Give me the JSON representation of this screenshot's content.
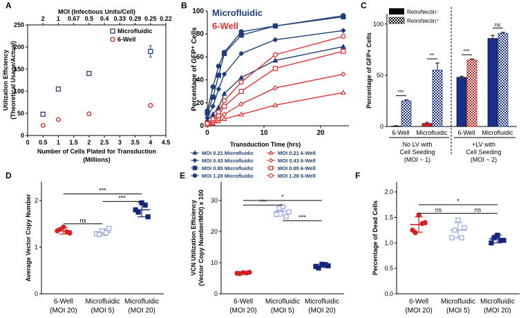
{
  "chart_data": [
    {
      "panel": "A",
      "type": "scatter",
      "xlabel": "Number of Cells Plated for Transduction (Millions)",
      "ylabel": "Utilization Efficiency (Theoretical Usage/Actual)",
      "top_axis_label": "MOI (Infectious Units/Cell)",
      "xticks": [
        "0",
        "0.5",
        "1",
        "1.5",
        "2",
        "2.5",
        "3",
        "3.5",
        "4",
        "4.5"
      ],
      "top_ticks": [
        "2",
        "1",
        "0.67",
        "0.5",
        "0.4",
        "0.33",
        "0.29",
        "0.25",
        "0.22"
      ],
      "yticks": [
        "0",
        "50",
        "100",
        "150",
        "200",
        "250"
      ],
      "xlim": [
        0,
        4.5
      ],
      "ylim": [
        0,
        250
      ],
      "series": [
        {
          "name": "Microfluidic",
          "marker": "square",
          "color": "#1f3f7a",
          "x": [
            0.5,
            1,
            2,
            4
          ],
          "y": [
            48,
            105,
            140,
            190
          ],
          "err": [
            3,
            4,
            4,
            13
          ]
        },
        {
          "name": "6-Well",
          "marker": "circle",
          "color": "#d42020",
          "x": [
            0.5,
            1,
            2,
            4
          ],
          "y": [
            23,
            36,
            49,
            68
          ],
          "err": [
            2,
            2,
            2,
            3
          ]
        }
      ]
    },
    {
      "panel": "B",
      "type": "line",
      "xlabel": "Transduction Time (hrs)",
      "ylabel": "Percentage of GFP⁺ Cells",
      "xticks": [
        "0",
        "10",
        "20"
      ],
      "yticks": [
        "0",
        "20",
        "40",
        "60",
        "80",
        "100"
      ],
      "xlim": [
        0,
        25
      ],
      "ylim": [
        0,
        100
      ],
      "titles": [
        "Microfluidic",
        "6-Well"
      ],
      "x": [
        0,
        1,
        2,
        3,
        6,
        12,
        24
      ],
      "series": [
        {
          "name": "MOI 0.21 Microfluidic",
          "marker": "tri",
          "color": "#1f3f7a",
          "y": [
            5,
            10,
            16,
            28,
            42,
            57,
            69
          ]
        },
        {
          "name": "MOI 0.43 Microfluidic",
          "marker": "dia",
          "color": "#1f3f7a",
          "y": [
            7,
            17,
            32,
            45,
            63,
            75,
            83
          ]
        },
        {
          "name": "MOI 0.85 Microfluidic",
          "marker": "sq",
          "color": "#1f3f7a",
          "y": [
            11,
            25,
            44,
            63,
            79,
            87,
            95
          ]
        },
        {
          "name": "MOI 1.28 Microfluidic",
          "marker": "circ",
          "color": "#1f3f7a",
          "y": [
            13,
            34,
            52,
            64,
            82,
            87,
            96
          ]
        },
        {
          "name": "MOI 0.21 6-Well",
          "marker": "tri",
          "color": "#e03030",
          "y": [
            1,
            2,
            4,
            6,
            10,
            18,
            29
          ]
        },
        {
          "name": "MOI 0.43 6-Well",
          "marker": "dia",
          "color": "#e03030",
          "y": [
            1,
            3,
            6,
            10,
            19,
            33,
            45
          ]
        },
        {
          "name": "MOI 0.85 6-Well",
          "marker": "sq",
          "color": "#e03030",
          "y": [
            2,
            5,
            9,
            17,
            30,
            50,
            65
          ]
        },
        {
          "name": "MOI 1.28 6-Well",
          "marker": "circ",
          "color": "#e03030",
          "y": [
            2,
            6,
            12,
            22,
            38,
            62,
            78
          ]
        }
      ]
    },
    {
      "panel": "C",
      "type": "bar",
      "ylabel": "Percentage of GFP+ Cells",
      "yticks": [
        "0",
        "50",
        "100"
      ],
      "ylim": [
        0,
        110
      ],
      "legend": [
        "RetroNectin⁻",
        "RetroNectin⁺"
      ],
      "groups": [
        "6-Well",
        "Microfluidic",
        "6-Well",
        "Microfluidic"
      ],
      "super_groups": [
        "No LV with",
        "Cell Seeding",
        "(MOI ~ 1)",
        "+LV with",
        "Cell Seeding",
        "(MOI ~ 2)"
      ],
      "series": [
        {
          "name": "RetroNectin⁻",
          "values": [
            0.5,
            3,
            48,
            86
          ],
          "err": [
            0.3,
            1,
            1,
            3
          ]
        },
        {
          "name": "RetroNectin⁺",
          "values": [
            25,
            55,
            65,
            91
          ],
          "err": [
            1,
            7,
            1,
            1
          ]
        }
      ],
      "bar_colors": [
        "#c81818",
        "#e01818",
        "#1a2f8a",
        "#1a2f8a"
      ],
      "significance": [
        "***",
        "**",
        "***",
        "ns"
      ]
    },
    {
      "panel": "D",
      "type": "scatter",
      "ylabel": "Average Vector Copy Number",
      "yticks": [
        "0",
        "1",
        "2"
      ],
      "ylim": [
        0,
        2.4
      ],
      "categories": [
        "6-Well",
        "Microfluidic",
        "Microfluidic"
      ],
      "subcategories": [
        "(MOI 20)",
        "(MOI 5)",
        "(MOI 20)"
      ],
      "colors": [
        "#d42020",
        "#9ba9e0",
        "#16277a"
      ],
      "markers": [
        "circle",
        "square-open",
        "square"
      ],
      "values": [
        [
          1.43,
          1.35,
          1.3,
          1.38,
          1.33
        ],
        [
          1.35,
          1.29,
          1.4,
          1.27,
          1.31
        ],
        [
          1.95,
          1.8,
          1.65,
          1.75,
          1.9
        ]
      ],
      "mean": [
        1.35,
        1.32,
        1.8
      ],
      "sd": [
        0.07,
        0.07,
        0.15
      ],
      "significance": [
        "ns",
        "***",
        "***"
      ]
    },
    {
      "panel": "E",
      "type": "scatter",
      "ylabel": "VCN Utilization Efficiency (Vector Copy Number/MOI) x 100",
      "yticks": [
        "0",
        "10",
        "20",
        "30"
      ],
      "ylim": [
        0,
        36
      ],
      "categories": [
        "6-Well",
        "Microfluidic",
        "Microfluidic"
      ],
      "subcategories": [
        "(MOI 20)",
        "(MOI 5)",
        "(MOI 20)"
      ],
      "colors": [
        "#d42020",
        "#9ba9e0",
        "#16277a"
      ],
      "markers": [
        "circle",
        "square-open",
        "square"
      ],
      "values": [
        [
          6.8,
          6.6,
          6.9,
          6.5,
          6.7
        ],
        [
          28,
          25.5,
          26.3,
          27.5,
          24.8
        ],
        [
          9.5,
          8.8,
          9.0,
          8.3,
          9.4
        ]
      ],
      "mean": [
        6.7,
        26.5,
        9.0
      ],
      "sd": [
        0.3,
        1.5,
        0.5
      ],
      "significance": [
        "***",
        "*",
        "***"
      ]
    },
    {
      "panel": "F",
      "type": "scatter",
      "ylabel": "Percentage of Dead Cells",
      "yticks": [
        "0.0",
        "0.5",
        "1.0",
        "1.5",
        "2.0"
      ],
      "ylim": [
        0,
        2.2
      ],
      "categories": [
        "6-Well",
        "Microfluidic",
        "Microfluidic"
      ],
      "subcategories": [
        "(MOI 20)",
        "(MOI 5)",
        "(MOI 20)"
      ],
      "colors": [
        "#d42020",
        "#9ba9e0",
        "#16277a"
      ],
      "markers": [
        "circle",
        "square-open",
        "square"
      ],
      "values": [
        [
          1.55,
          1.25,
          1.4,
          1.2,
          1.38
        ],
        [
          1.45,
          1.1,
          1.3,
          1.25,
          1.1
        ],
        [
          1.15,
          1.0,
          1.05,
          1.1,
          1.05
        ]
      ],
      "mean": [
        1.36,
        1.25,
        1.08
      ],
      "sd": [
        0.15,
        0.15,
        0.08
      ],
      "significance": [
        "ns",
        "*",
        "ns"
      ]
    }
  ],
  "panel_letters": [
    "A",
    "B",
    "C",
    "D",
    "E",
    "F"
  ]
}
